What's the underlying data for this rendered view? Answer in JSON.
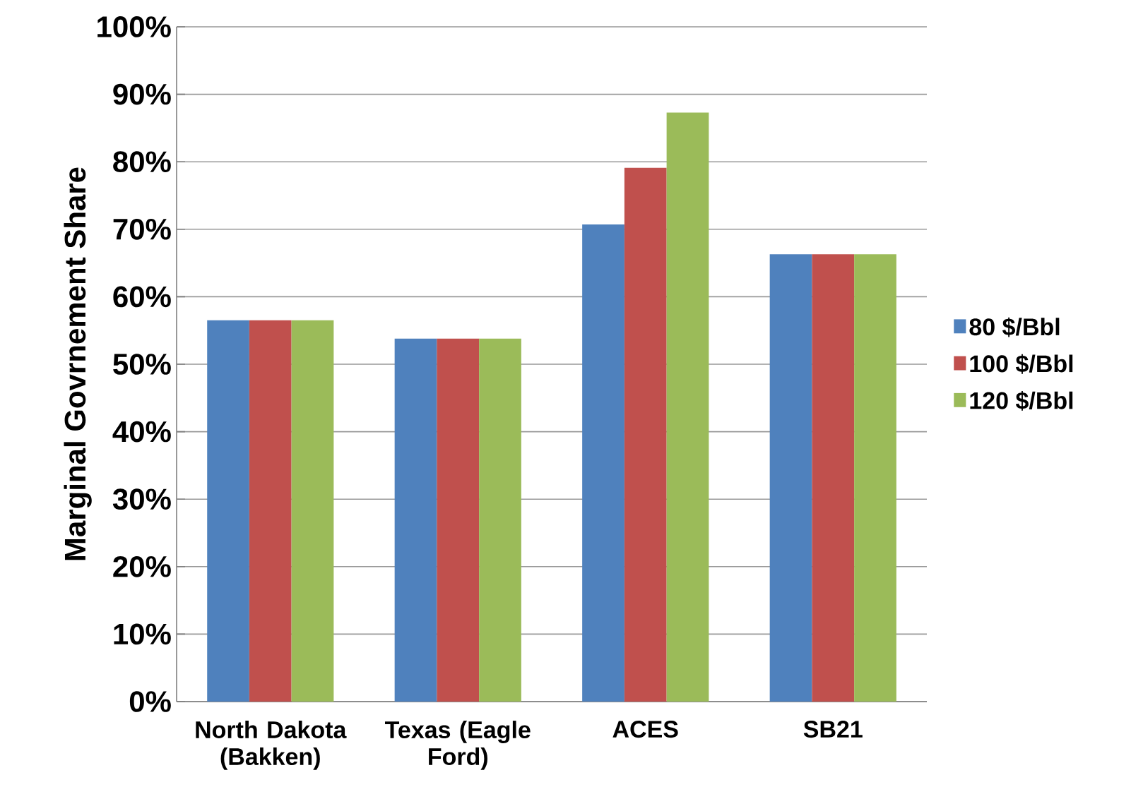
{
  "chart_data": {
    "type": "bar",
    "ylabel": "Marginal Govrnement Share",
    "categories": [
      "North Dakota (Bakken)",
      "Texas (Eagle Ford)",
      "ACES",
      "SB21"
    ],
    "series": [
      {
        "name": "80 $/Bbl",
        "color": "#4f81bd",
        "values": [
          56.5,
          53.8,
          70.7,
          66.3
        ]
      },
      {
        "name": "100 $/Bbl",
        "color": "#c0504d",
        "values": [
          56.5,
          53.8,
          79.1,
          66.3
        ]
      },
      {
        "name": "120 $/Bbl",
        "color": "#9bbb59",
        "values": [
          56.5,
          53.8,
          87.3,
          66.3
        ]
      }
    ],
    "ylim": [
      0,
      100
    ],
    "yticks": [
      {
        "value": 0,
        "label": "0%"
      },
      {
        "value": 10,
        "label": "10%"
      },
      {
        "value": 20,
        "label": "20%"
      },
      {
        "value": 30,
        "label": "30%"
      },
      {
        "value": 40,
        "label": "40%"
      },
      {
        "value": 50,
        "label": "50%"
      },
      {
        "value": 60,
        "label": "60%"
      },
      {
        "value": 70,
        "label": "70%"
      },
      {
        "value": 80,
        "label": "80%"
      },
      {
        "value": 90,
        "label": "90%"
      },
      {
        "value": 100,
        "label": "100%"
      }
    ],
    "grid": "y",
    "legend": "right"
  }
}
